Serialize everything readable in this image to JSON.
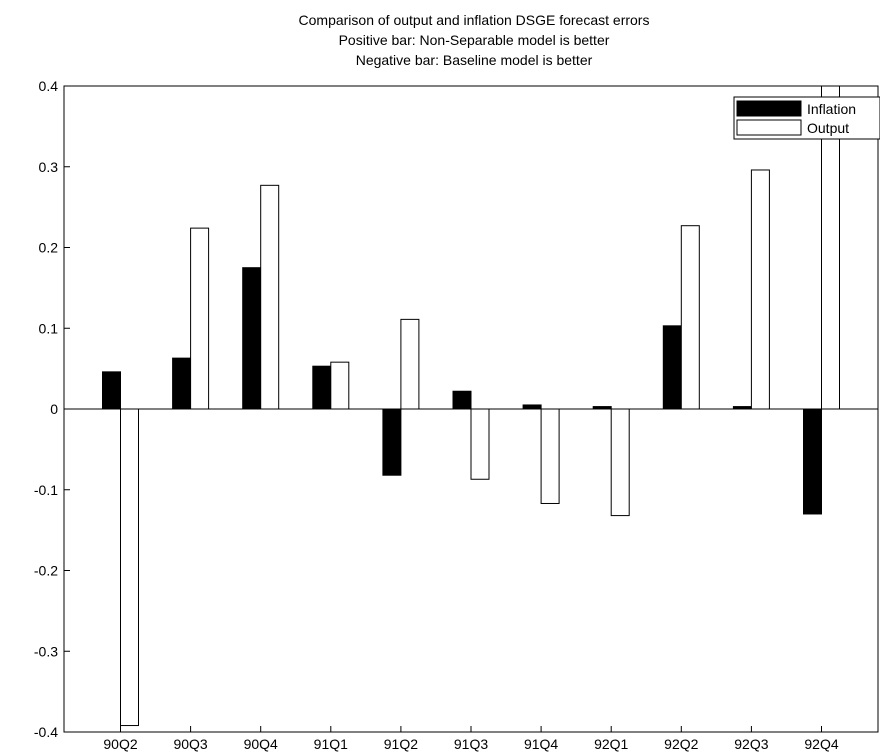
{
  "chart_data": {
    "type": "bar",
    "title": "Comparison of output and inflation DSGE forecast errors",
    "subtitle": [
      "Positive bar: Non-Separable model is better",
      "Negative bar: Baseline model is better"
    ],
    "xlabel": "",
    "ylabel": "",
    "ylim": [
      -0.4,
      0.4
    ],
    "yticks": [
      -0.4,
      -0.3,
      -0.2,
      -0.1,
      0,
      0.1,
      0.2,
      0.3,
      0.4
    ],
    "ytick_labels": [
      "-0.4",
      "-0.3",
      "-0.2",
      "-0.1",
      "0",
      "0.1",
      "0.2",
      "0.3",
      "0.4"
    ],
    "categories": [
      "90Q2",
      "90Q3",
      "90Q4",
      "91Q1",
      "91Q2",
      "91Q3",
      "91Q4",
      "92Q1",
      "92Q2",
      "92Q3",
      "92Q4"
    ],
    "series": [
      {
        "name": "Inflation",
        "color": "#000000",
        "values": [
          0.046,
          0.063,
          0.175,
          0.053,
          -0.082,
          0.022,
          0.005,
          0.003,
          0.103,
          0.003,
          -0.13
        ]
      },
      {
        "name": "Output",
        "color": "#ffffff",
        "values": [
          -0.392,
          0.224,
          0.277,
          0.058,
          0.111,
          -0.087,
          -0.117,
          -0.132,
          0.227,
          0.296,
          0.4
        ]
      }
    ],
    "grid": false,
    "legend_position": "top-right"
  }
}
